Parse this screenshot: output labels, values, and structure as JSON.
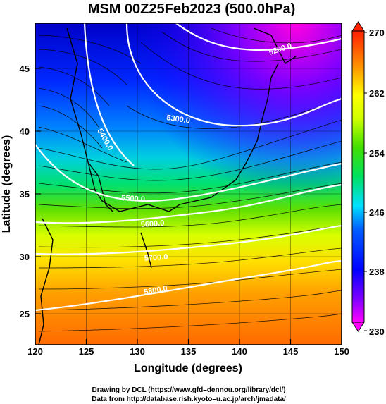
{
  "title": "MSM 00Z25Feb2023 (500.0hPa)",
  "chart_data": {
    "type": "heatmap",
    "title": "MSM 00Z25Feb2023 (500.0hPa)",
    "xlabel": "Longitude (degrees)",
    "ylabel": "Latitude  (degrees)",
    "xlim": [
      120,
      150
    ],
    "ylim": [
      22.5,
      48
    ],
    "x_ticks": [
      "120",
      "125",
      "130",
      "135",
      "140",
      "145",
      "150"
    ],
    "y_ticks": [
      "25",
      "30",
      "35",
      "40",
      "45"
    ],
    "colorbar": {
      "min": 230,
      "max": 270,
      "ticks": [
        "230",
        "238",
        "246",
        "254",
        "262",
        "270"
      ],
      "colors": [
        "#ff00ff",
        "#8000ff",
        "#0000ff",
        "#0040ff",
        "#00a0ff",
        "#00e0e0",
        "#00e060",
        "#40e000",
        "#c0ff00",
        "#ffff00",
        "#ffb000",
        "#ff6000",
        "#ff2000"
      ]
    },
    "contours": [
      {
        "label": "5200.0",
        "value": 5200
      },
      {
        "label": "5300.0",
        "value": 5300
      },
      {
        "label": "5400.0",
        "value": 5400
      },
      {
        "label": "5500.0",
        "value": 5500
      },
      {
        "label": "5600.0",
        "value": 5600
      },
      {
        "label": "5700.0",
        "value": 5700
      },
      {
        "label": "5800.0",
        "value": 5800
      }
    ],
    "grid": true
  },
  "credits": {
    "line1": "Drawing by DCL (https://www.gfd–dennou.org/library/dcl/)",
    "line2": "Data from http://database.rish.kyoto–u.ac.jp/arch/jmadata/"
  }
}
